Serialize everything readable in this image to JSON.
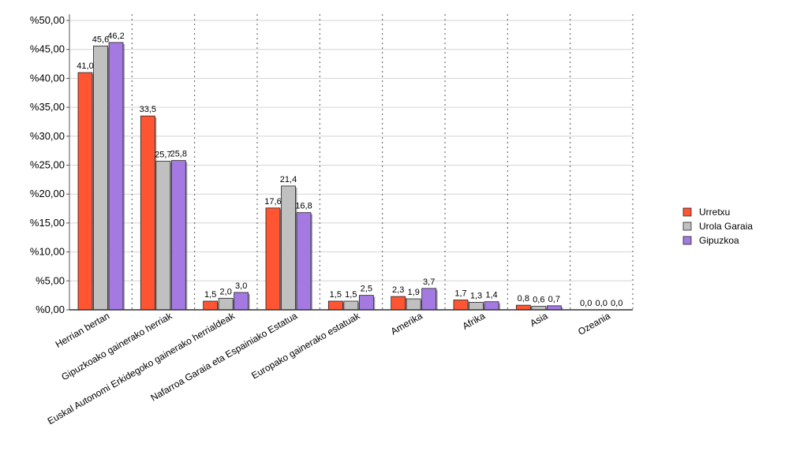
{
  "chart_data": {
    "type": "bar",
    "categories": [
      "Herrian bertan",
      "Gipuzkoako gainerako herriak",
      "Euskal Autonomi Erkidegoko gainerako herrialdeak",
      "Nafarroa Garaia eta Espainiako Estatua",
      "Europako gainerako estatuak",
      "Amerika",
      "Afrika",
      "Asia",
      "Ozeania"
    ],
    "series": [
      {
        "name": "Urretxu",
        "color": "#ff5533",
        "values": [
          41.0,
          33.5,
          1.5,
          17.6,
          1.5,
          2.3,
          1.7,
          0.8,
          0.0
        ],
        "labels": [
          "41,0",
          "33,5",
          "1,5",
          "17,6",
          "1,5",
          "2,3",
          "1,7",
          "0,8",
          "0,0"
        ]
      },
      {
        "name": "Urola Garaia",
        "color": "#c0c0c0",
        "values": [
          45.6,
          25.7,
          2.0,
          21.4,
          1.5,
          1.9,
          1.3,
          0.6,
          0.0
        ],
        "labels": [
          "45,6",
          "25,7",
          "2,0",
          "21,4",
          "1,5",
          "1,9",
          "1,3",
          "0,6",
          "0,0"
        ]
      },
      {
        "name": "Gipuzkoa",
        "color": "#a47ae2",
        "values": [
          46.2,
          25.8,
          3.0,
          16.8,
          2.5,
          3.7,
          1.4,
          0.7,
          0.0
        ],
        "labels": [
          "46,2",
          "25,8",
          "3,0",
          "16,8",
          "2,5",
          "3,7",
          "1,4",
          "0,7",
          "0,0"
        ]
      }
    ],
    "yticks": [
      "%0,00",
      "%5,00",
      "%10,00",
      "%15,00",
      "%20,00",
      "%25,00",
      "%30,00",
      "%35,00",
      "%40,00",
      "%45,00",
      "%50,00"
    ],
    "ylim": [
      0,
      50
    ],
    "grid": true,
    "legend_position": "right"
  }
}
